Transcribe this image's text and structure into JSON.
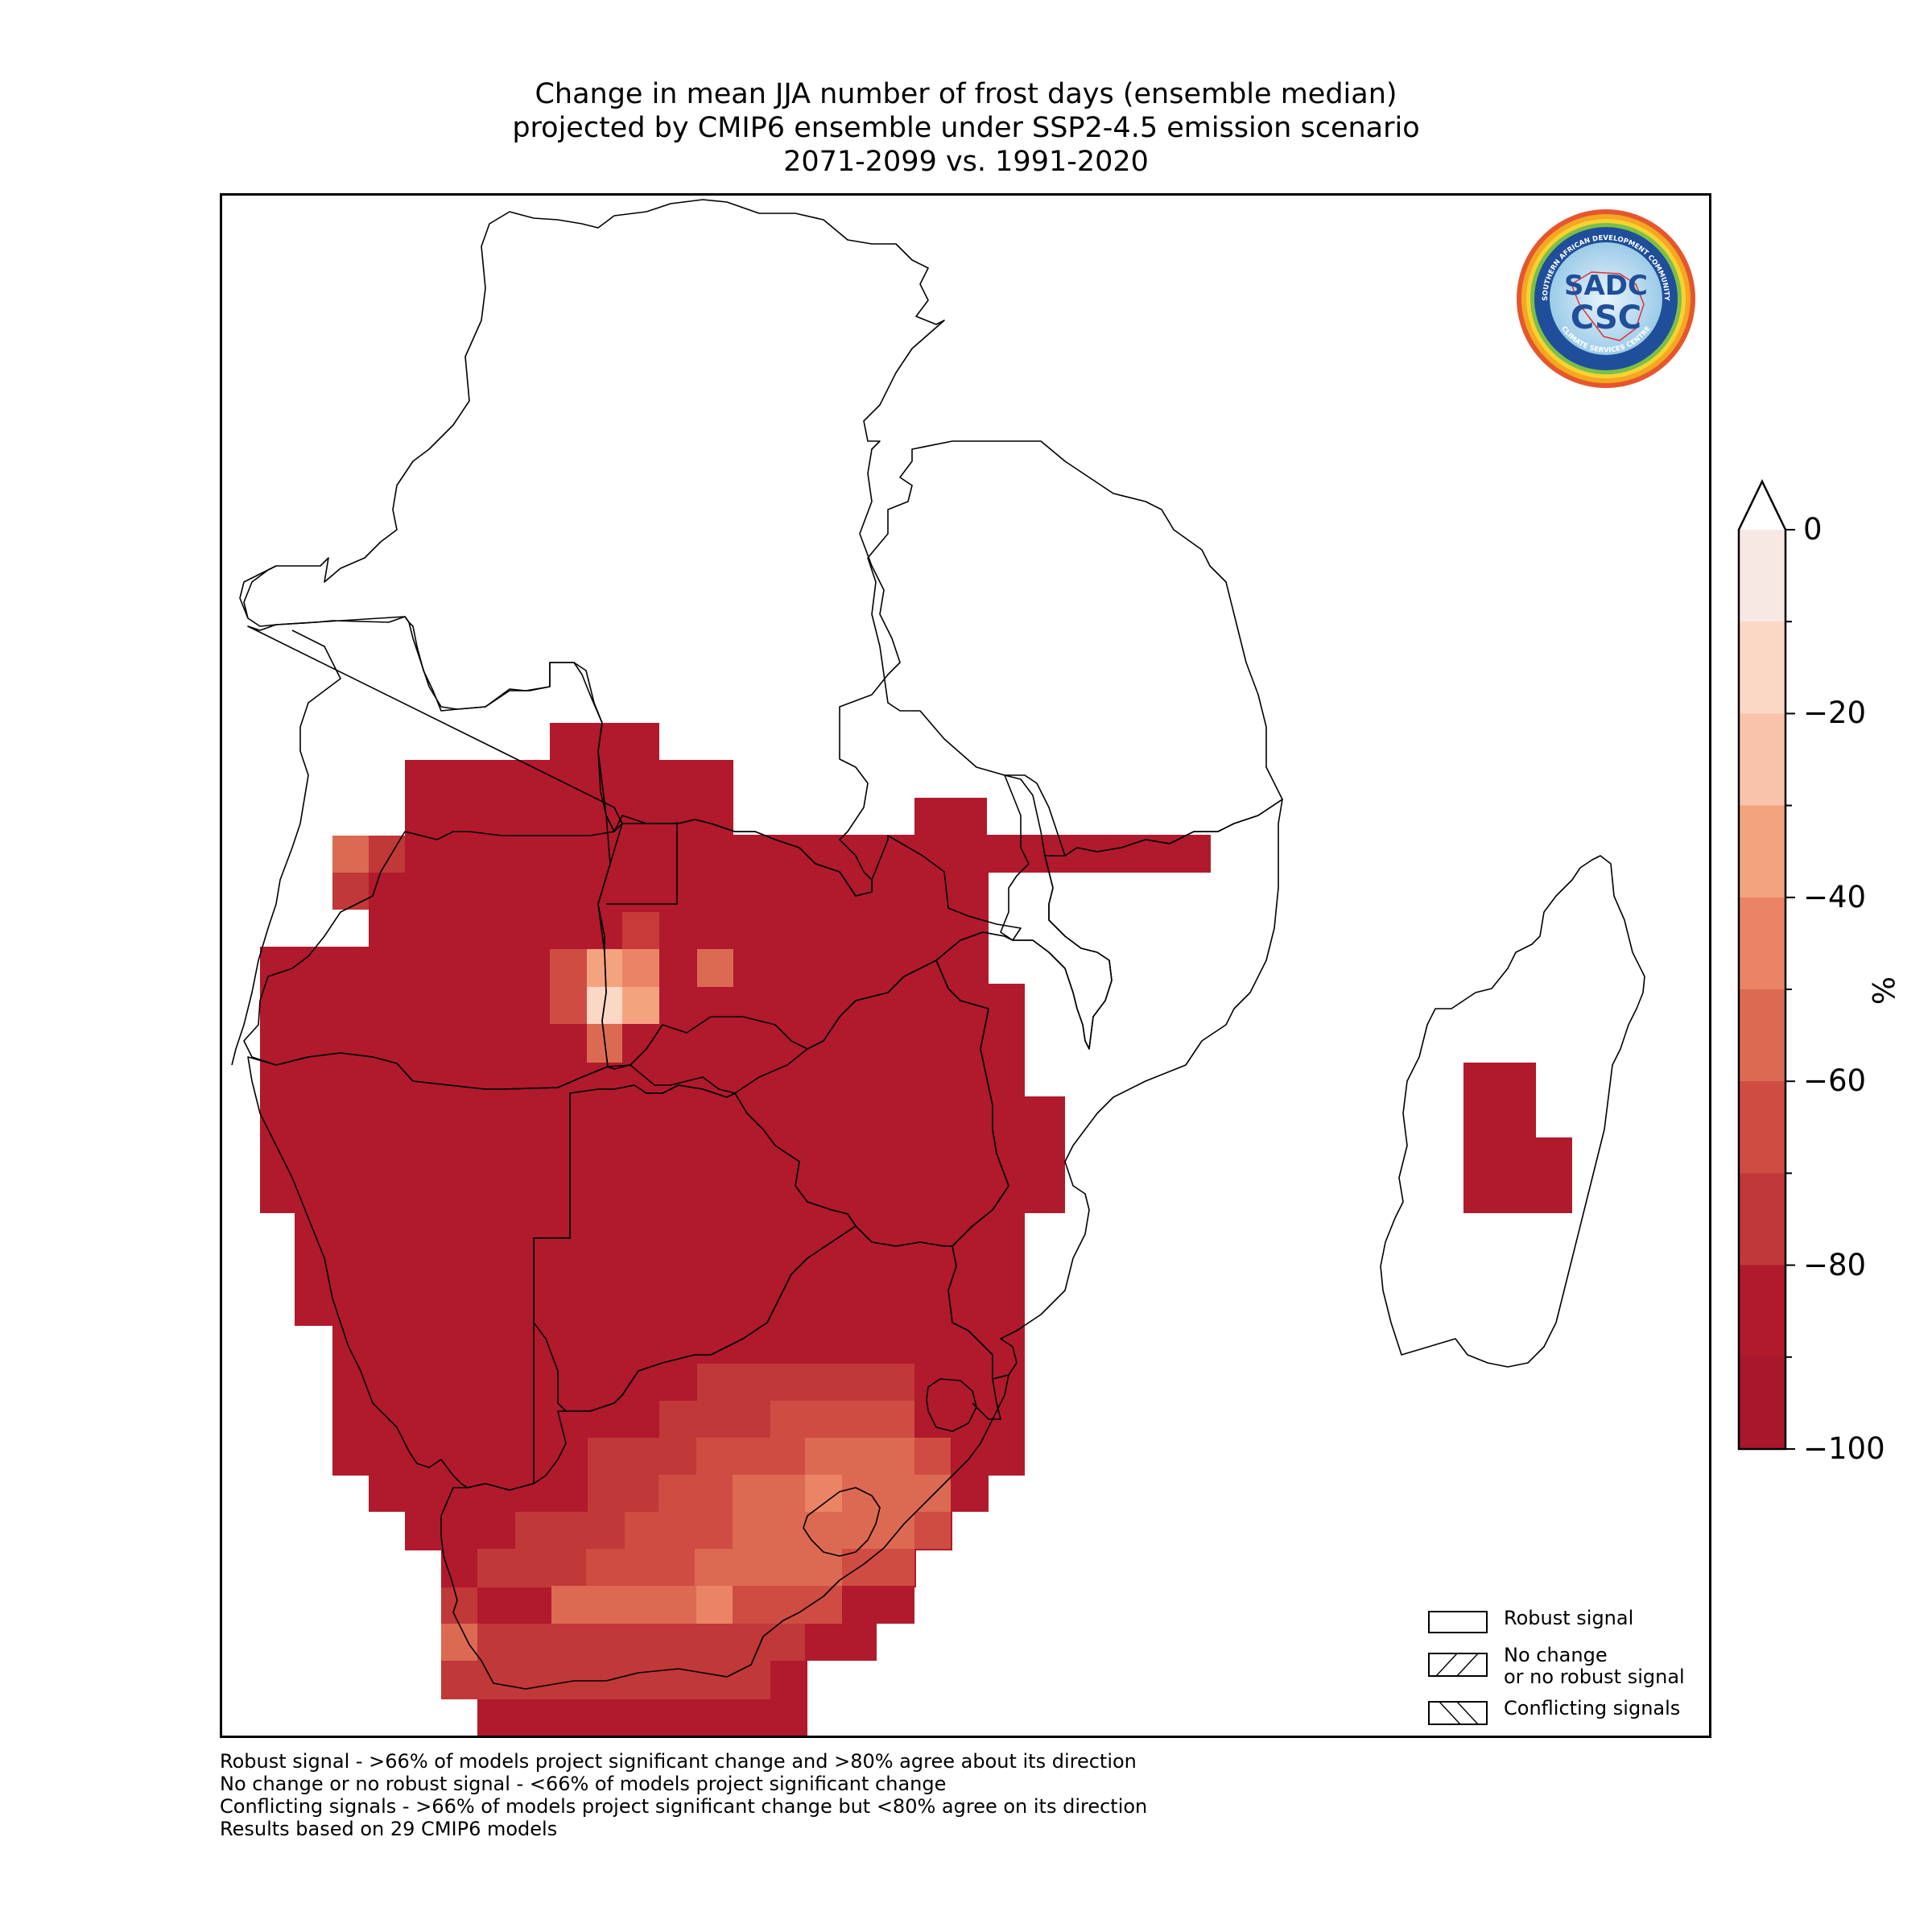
{
  "title": {
    "line1": "Change in mean JJA number of frost days (ensemble median)",
    "line2": "projected by CMIP6 ensemble under SSP2-4.5 emission scenario",
    "line3": "2071-2099 vs. 1991-2020"
  },
  "colorbar": {
    "unit": "%",
    "ticks": [
      "0",
      "−20",
      "−40",
      "−60",
      "−80",
      "−100"
    ],
    "colors": [
      "#f8e8e4",
      "#fbd7c6",
      "#f8c3aa",
      "#f4a37f",
      "#ea8465",
      "#dc6a52",
      "#cf4c42",
      "#c03838",
      "#b01a2c",
      "#a8172c"
    ]
  },
  "legend": {
    "robust": "Robust signal",
    "no_change_1": "No change",
    "no_change_2": "or no robust signal",
    "conflicting": "Conflicting signals"
  },
  "notes": {
    "line1": "Robust signal - >66% of models project significant change and >80% agree about its direction",
    "line2": "No change or no robust signal - <66% of models project significant change",
    "line3": "Conflicting signals - >66% of models project significant change but <80% agree on its direction",
    "line4": "Results based on 29 CMIP6 models"
  },
  "logo": {
    "line1": "SADC",
    "line2": "CSC",
    "ring_top": "SOUTHERN AFRICAN DEVELOPMENT COMMUNITY",
    "ring_bottom": "CLIMATE SERVICES CENTRE"
  }
}
